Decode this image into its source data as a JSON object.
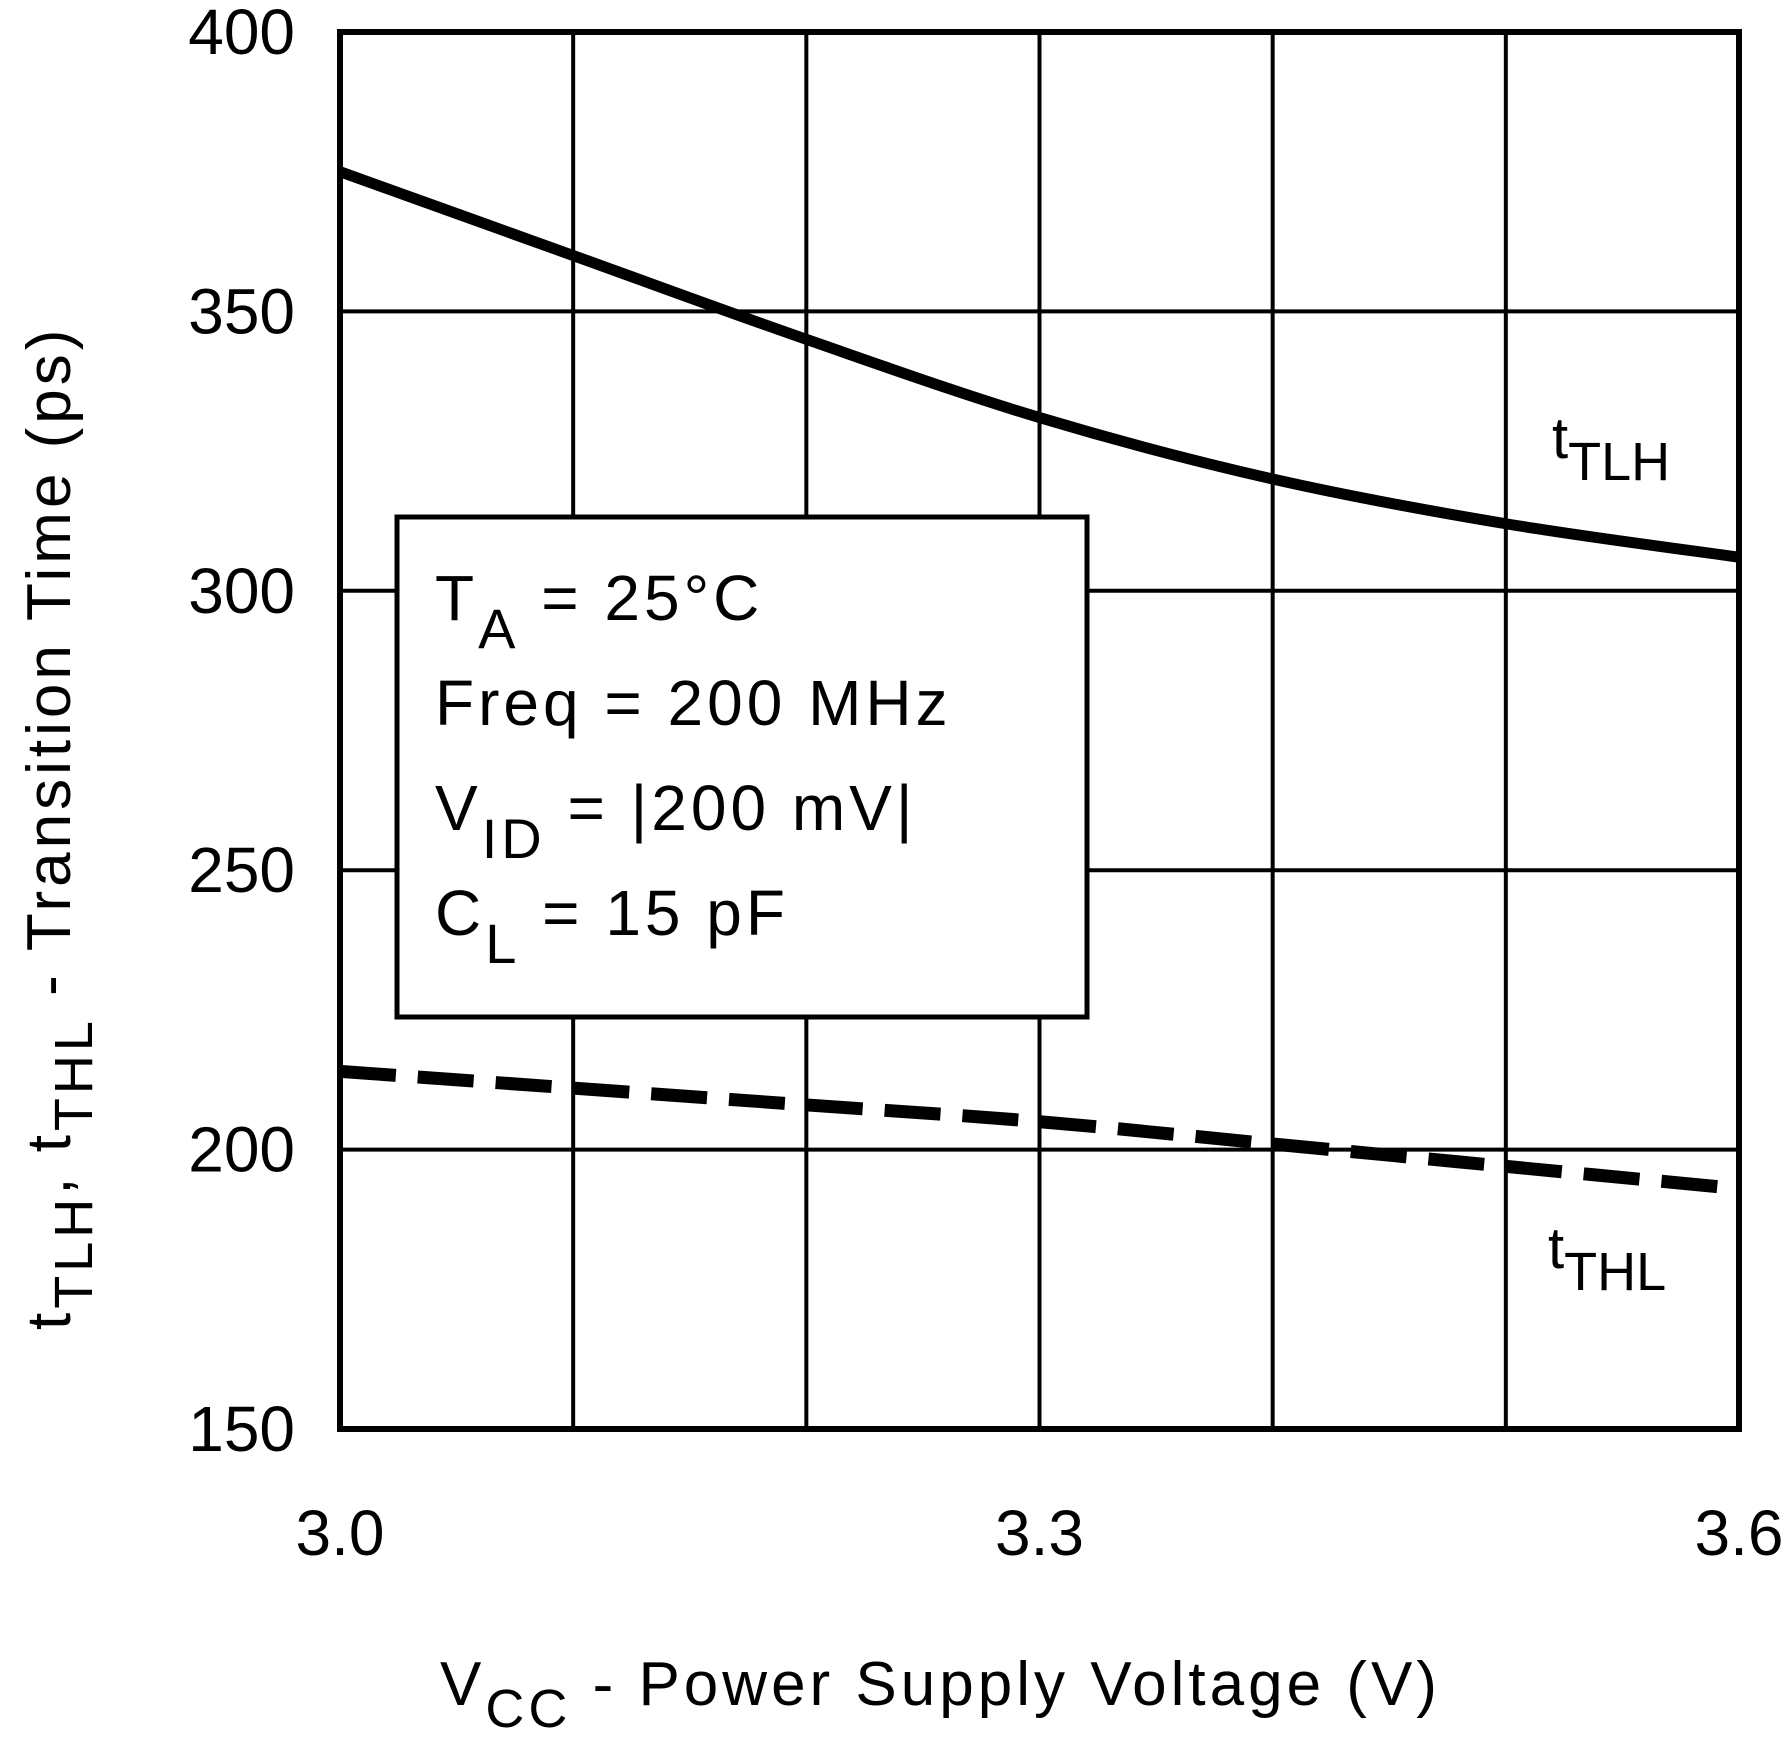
{
  "chart_data": {
    "type": "line",
    "title": "",
    "xlabel": {
      "main": "V",
      "sub": "CC",
      "rest": " - Power Supply Voltage (V)"
    },
    "ylabel": {
      "p1": "t",
      "s1": "TLH",
      "p2": ", t",
      "s2": "THL",
      "rest": " - Transition Time (ps)"
    },
    "xlim": [
      3.0,
      3.6
    ],
    "ylim": [
      150,
      400
    ],
    "x_ticks": [
      3.0,
      3.1,
      3.2,
      3.3,
      3.4,
      3.5,
      3.6
    ],
    "x_tick_labels": {
      "3.0": "3.0",
      "3.3": "3.3",
      "3.6": "3.6"
    },
    "y_ticks": [
      150,
      200,
      250,
      300,
      350,
      400
    ],
    "y_tick_labels": [
      "150",
      "200",
      "250",
      "300",
      "350",
      "400"
    ],
    "grid": true,
    "series": [
      {
        "name": {
          "main": "t",
          "sub": "TLH"
        },
        "style": "solid",
        "x": [
          3.0,
          3.1,
          3.2,
          3.3,
          3.4,
          3.5,
          3.6
        ],
        "y": [
          375,
          360,
          345,
          331,
          320,
          312,
          306
        ]
      },
      {
        "name": {
          "main": "t",
          "sub": "THL"
        },
        "style": "dashed",
        "x": [
          3.0,
          3.1,
          3.2,
          3.3,
          3.4,
          3.5,
          3.6
        ],
        "y": [
          214,
          211,
          208,
          205,
          201,
          197,
          193
        ]
      }
    ],
    "annotation": [
      {
        "main": "T",
        "sub": "A",
        "rest": " = 25°C"
      },
      {
        "main": "Freq = 200 MHz",
        "sub": "",
        "rest": ""
      },
      {
        "main": "V",
        "sub": "ID",
        "rest": " = |200 mV|"
      },
      {
        "main": "C",
        "sub": "L",
        "rest": " = 15 pF"
      }
    ],
    "colors": {
      "line": "#000000",
      "background": "#ffffff"
    }
  }
}
